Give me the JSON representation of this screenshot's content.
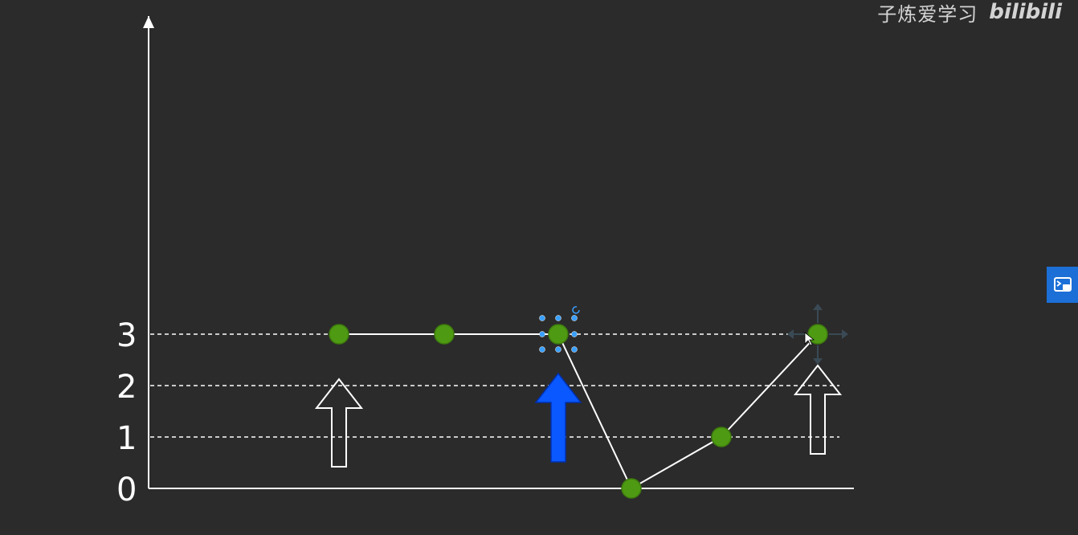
{
  "watermark": {
    "channel_name": "子炼爱学习",
    "platform_logo": "bilibili"
  },
  "side_button": {
    "icon": "picture-in-picture-icon"
  },
  "colors": {
    "background": "#2b2b2b",
    "point_fill": "#4e9a13",
    "highlight_arrow": "#0a58ff",
    "selection_handle": "#3aa0ff",
    "side_button": "#1b6fd6"
  },
  "chart_data": {
    "type": "line",
    "y_ticks": [
      "0",
      "1",
      "2",
      "3"
    ],
    "ylim": [
      0,
      3
    ],
    "dashed_reference_levels": [
      1,
      2,
      3
    ],
    "points": [
      {
        "x": 1,
        "y": 3
      },
      {
        "x": 2,
        "y": 3
      },
      {
        "x": 3,
        "y": 3,
        "selected": true
      },
      {
        "x": 4,
        "y": 0
      },
      {
        "x": 5,
        "y": 1
      },
      {
        "x": 6,
        "y": 3,
        "move_handles": true
      }
    ],
    "arrows": [
      {
        "at_x": 1,
        "style": "outline",
        "direction": "up"
      },
      {
        "at_x": 3,
        "style": "filled-blue",
        "direction": "up"
      },
      {
        "at_x": 6,
        "style": "outline",
        "direction": "up"
      }
    ]
  }
}
